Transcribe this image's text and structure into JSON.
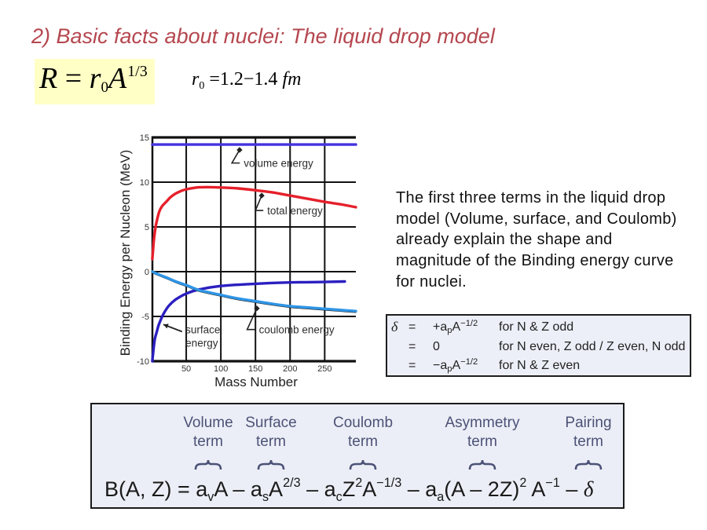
{
  "slide": {
    "title": "2) Basic facts about nuclei: The liquid drop model",
    "title_color": "#B5474F"
  },
  "radius_formula": {
    "highlight_color": "#FFFFC6",
    "segments": [
      {
        "t": "R",
        "it": true
      },
      {
        "t": " = "
      },
      {
        "t": "r",
        "it": true,
        "sub": "0"
      },
      {
        "t": "A",
        "it": true,
        "sup": "1/3"
      }
    ]
  },
  "r0_formula": {
    "segments": [
      {
        "t": "r",
        "it": true,
        "sub": "0"
      },
      {
        "t": " =1.2−1.4 "
      },
      {
        "t": "fm",
        "it": true
      }
    ]
  },
  "description": {
    "lines": [
      "The first three terms in the liquid drop",
      "model (Volume, surface, and Coulomb)",
      "already explain the shape and",
      "magnitude of the Binding energy curve",
      "for nuclei."
    ]
  },
  "pairing_box": {
    "rows": [
      {
        "lhs": "δ",
        "eq": "=",
        "expr": [
          {
            "t": "+a",
            "sub": "p"
          },
          {
            "t": "A",
            "sup": "−1/2"
          }
        ],
        "condition": "for N & Z odd"
      },
      {
        "lhs": "",
        "eq": "=",
        "expr": [
          {
            "t": "0"
          }
        ],
        "condition": "for N even, Z odd / Z even, N odd"
      },
      {
        "lhs": "",
        "eq": "=",
        "expr": [
          {
            "t": "−a",
            "sub": "p"
          },
          {
            "t": "A",
            "sup": "−1/2"
          }
        ],
        "condition": "for N & Z even"
      }
    ]
  },
  "formula_box": {
    "label_color": "#4C5276",
    "terms": [
      {
        "line1": "Volume",
        "line2": "term"
      },
      {
        "line1": "Surface",
        "line2": "term"
      },
      {
        "line1": "Coulomb",
        "line2": "term"
      },
      {
        "line1": "Asymmetry",
        "line2": "term"
      },
      {
        "line1": "Pairing",
        "line2": "term"
      }
    ],
    "equation": [
      {
        "t": "B(A, Z) = a",
        "sub": "v"
      },
      {
        "t": "A – a",
        "sub": "s"
      },
      {
        "t": "A",
        "sup": "2/3"
      },
      {
        "t": " – a",
        "sub": "c"
      },
      {
        "t": "Z",
        "sup": "2"
      },
      {
        "t": "A",
        "sup": "−1/3"
      },
      {
        "t": " – a",
        "sub": "a"
      },
      {
        "t": "(A – 2Z)",
        "sup": "2"
      },
      {
        "t": " A",
        "sup": "−1"
      },
      {
        "t": " – "
      },
      {
        "t": "δ",
        "it": true
      }
    ]
  },
  "chart_data": {
    "type": "line",
    "title": "",
    "xlabel": "Mass Number",
    "ylabel": "Binding Energy per Nucleon (MeV)",
    "xlim": [
      0,
      295
    ],
    "ylim": [
      -10,
      15
    ],
    "xticks": [
      50,
      100,
      150,
      200,
      250
    ],
    "yticks": [
      15,
      10,
      5,
      0,
      -5,
      -10
    ],
    "grid": true,
    "legend": null,
    "series": [
      {
        "name": "volume energy",
        "color": "#4432E0",
        "points": [
          [
            1,
            14.2
          ],
          [
            295,
            14.2
          ]
        ]
      },
      {
        "name": "total energy",
        "color": "#E5202B",
        "points": [
          [
            1,
            1.4
          ],
          [
            3,
            3.3
          ],
          [
            5,
            4.6
          ],
          [
            7,
            5.5
          ],
          [
            11,
            6.7
          ],
          [
            15,
            7.3
          ],
          [
            21,
            7.8
          ],
          [
            27,
            8.3
          ],
          [
            34,
            8.7
          ],
          [
            42,
            9.0
          ],
          [
            50,
            9.2
          ],
          [
            65,
            9.4
          ],
          [
            80,
            9.45
          ],
          [
            100,
            9.4
          ],
          [
            125,
            9.3
          ],
          [
            150,
            9.1
          ],
          [
            175,
            8.85
          ],
          [
            200,
            8.5
          ],
          [
            225,
            8.15
          ],
          [
            250,
            7.8
          ],
          [
            275,
            7.5
          ],
          [
            295,
            7.2
          ]
        ]
      },
      {
        "name": "surface energy",
        "color": "#2B1FC0",
        "points": [
          [
            1,
            -10
          ],
          [
            2,
            -9.2
          ],
          [
            3.4,
            -8.2
          ],
          [
            5,
            -7.4
          ],
          [
            7.2,
            -6.8
          ],
          [
            10,
            -6.0
          ],
          [
            13.6,
            -5.3
          ],
          [
            18,
            -4.6
          ],
          [
            25,
            -3.8
          ],
          [
            35,
            -3.1
          ],
          [
            50,
            -2.45
          ],
          [
            68,
            -2.0
          ],
          [
            100,
            -1.6
          ],
          [
            150,
            -1.35
          ],
          [
            200,
            -1.2
          ],
          [
            250,
            -1.15
          ],
          [
            279,
            -1.1
          ]
        ]
      },
      {
        "name": "coulomb energy",
        "color": "#2F95E6",
        "shadow_color": "#1a1a1a",
        "points": [
          [
            1,
            0
          ],
          [
            10,
            -0.3
          ],
          [
            23,
            -0.7
          ],
          [
            35,
            -1.1
          ],
          [
            50,
            -1.5
          ],
          [
            68,
            -2.05
          ],
          [
            85,
            -2.35
          ],
          [
            100,
            -2.6
          ],
          [
            125,
            -3.0
          ],
          [
            150,
            -3.3
          ],
          [
            175,
            -3.6
          ],
          [
            200,
            -3.85
          ],
          [
            225,
            -4.0
          ],
          [
            250,
            -4.15
          ],
          [
            275,
            -4.3
          ],
          [
            295,
            -4.4
          ]
        ]
      }
    ],
    "annotations": [
      {
        "style": "leader",
        "lines": [
          "volume energy"
        ],
        "marker": [
          127,
          13.6
        ],
        "label": [
          133,
          11.7
        ]
      },
      {
        "style": "leader",
        "lines": [
          "total energy"
        ],
        "marker": [
          159,
          8.5
        ],
        "label": [
          167,
          6.4
        ]
      },
      {
        "style": "leader",
        "lines": [
          "coulomb energy"
        ],
        "marker": [
          152,
          -4.1
        ],
        "label": [
          155,
          -6.9
        ]
      },
      {
        "style": "arrow",
        "lines": [
          "surface",
          "energy"
        ],
        "head": [
          17,
          -5.9
        ],
        "tail": [
          44,
          -6.7
        ],
        "label": [
          49,
          -6.9
        ]
      }
    ]
  }
}
